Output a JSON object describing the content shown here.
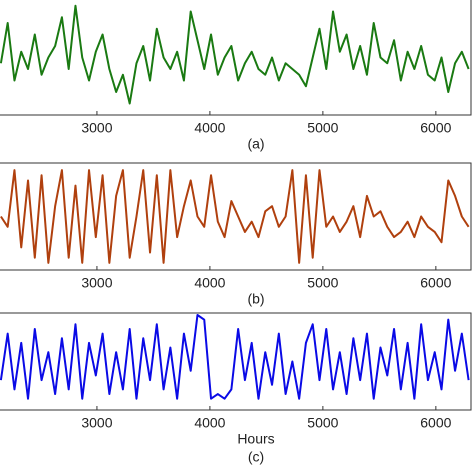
{
  "chart_data": [
    {
      "type": "line",
      "title": "(a)",
      "x": [
        2150,
        2210,
        2270,
        2330,
        2390,
        2450,
        2510,
        2570,
        2630,
        2690,
        2750,
        2810,
        2870,
        2930,
        2990,
        3050,
        3110,
        3170,
        3230,
        3290,
        3350,
        3410,
        3470,
        3530,
        3590,
        3650,
        3710,
        3770,
        3830,
        3890,
        3950,
        4010,
        4070,
        4130,
        4190,
        4250,
        4310,
        4370,
        4430,
        4490,
        4550,
        4610,
        4670,
        4730,
        4790,
        4850,
        4910,
        4970,
        5030,
        5090,
        5150,
        5210,
        5270,
        5330,
        5390,
        5450,
        5510,
        5570,
        5630,
        5690,
        5750,
        5810,
        5870,
        5930,
        5990,
        6050,
        6110,
        6170,
        6230,
        6290
      ],
      "series": [
        {
          "color": "#1a7a12",
          "values": [
            0.45,
            0.8,
            0.3,
            0.55,
            0.4,
            0.7,
            0.35,
            0.5,
            0.6,
            0.85,
            0.4,
            0.95,
            0.5,
            0.3,
            0.55,
            0.7,
            0.4,
            0.2,
            0.35,
            0.1,
            0.45,
            0.6,
            0.3,
            0.75,
            0.5,
            0.4,
            0.55,
            0.3,
            0.9,
            0.65,
            0.4,
            0.7,
            0.35,
            0.5,
            0.6,
            0.3,
            0.45,
            0.55,
            0.4,
            0.35,
            0.5,
            0.3,
            0.45,
            0.4,
            0.35,
            0.25,
            0.5,
            0.75,
            0.4,
            0.9,
            0.55,
            0.7,
            0.4,
            0.6,
            0.35,
            0.8,
            0.5,
            0.45,
            0.65,
            0.3,
            0.55,
            0.4,
            0.6,
            0.35,
            0.3,
            0.5,
            0.2,
            0.45,
            0.55,
            0.4
          ]
        }
      ],
      "xlim": [
        2142,
        6320
      ],
      "xticks": [
        3000,
        4000,
        5000,
        6000
      ],
      "ylim": [
        0,
        1
      ]
    },
    {
      "type": "line",
      "title": "(b)",
      "x": [
        2150,
        2210,
        2270,
        2330,
        2390,
        2450,
        2510,
        2570,
        2630,
        2690,
        2750,
        2810,
        2870,
        2930,
        2990,
        3050,
        3110,
        3170,
        3230,
        3290,
        3350,
        3410,
        3470,
        3530,
        3590,
        3650,
        3710,
        3770,
        3830,
        3890,
        3950,
        4010,
        4070,
        4130,
        4190,
        4250,
        4310,
        4370,
        4430,
        4490,
        4550,
        4610,
        4670,
        4730,
        4790,
        4850,
        4910,
        4970,
        5030,
        5090,
        5150,
        5210,
        5270,
        5330,
        5390,
        5450,
        5510,
        5570,
        5630,
        5690,
        5750,
        5810,
        5870,
        5930,
        5990,
        6050,
        6110,
        6170,
        6230,
        6290
      ],
      "series": [
        {
          "color": "#b0400e",
          "values": [
            0.5,
            0.4,
            0.95,
            0.2,
            0.85,
            0.1,
            0.9,
            0.05,
            0.6,
            0.95,
            0.1,
            0.8,
            0.05,
            0.95,
            0.3,
            0.9,
            0.05,
            0.7,
            0.95,
            0.1,
            0.5,
            0.95,
            0.15,
            0.9,
            0.05,
            0.95,
            0.3,
            0.6,
            0.85,
            0.5,
            0.4,
            0.9,
            0.45,
            0.3,
            0.65,
            0.5,
            0.35,
            0.45,
            0.3,
            0.55,
            0.6,
            0.4,
            0.5,
            0.95,
            0.05,
            0.9,
            0.1,
            0.95,
            0.4,
            0.5,
            0.35,
            0.45,
            0.6,
            0.3,
            0.7,
            0.5,
            0.55,
            0.4,
            0.3,
            0.35,
            0.45,
            0.3,
            0.5,
            0.4,
            0.35,
            0.25,
            0.85,
            0.7,
            0.5,
            0.4
          ]
        }
      ],
      "xlim": [
        2142,
        6320
      ],
      "xticks": [
        3000,
        4000,
        5000,
        6000
      ],
      "ylim": [
        0,
        1
      ]
    },
    {
      "type": "line",
      "title": "(c)",
      "x_label": "Hours",
      "x": [
        2150,
        2210,
        2270,
        2330,
        2390,
        2450,
        2510,
        2570,
        2630,
        2690,
        2750,
        2810,
        2870,
        2930,
        2990,
        3050,
        3110,
        3170,
        3230,
        3290,
        3350,
        3410,
        3470,
        3530,
        3590,
        3650,
        3710,
        3770,
        3830,
        3890,
        3950,
        4010,
        4070,
        4130,
        4190,
        4250,
        4310,
        4370,
        4430,
        4490,
        4550,
        4610,
        4670,
        4730,
        4790,
        4850,
        4910,
        4970,
        5030,
        5090,
        5150,
        5210,
        5270,
        5330,
        5390,
        5450,
        5510,
        5570,
        5630,
        5690,
        5750,
        5810,
        5870,
        5930,
        5990,
        6050,
        6110,
        6170,
        6230,
        6290
      ],
      "series": [
        {
          "color": "#0a0ae6",
          "values": [
            0.3,
            0.8,
            0.2,
            0.7,
            0.1,
            0.85,
            0.3,
            0.6,
            0.15,
            0.75,
            0.2,
            0.9,
            0.1,
            0.7,
            0.35,
            0.8,
            0.15,
            0.6,
            0.2,
            0.85,
            0.1,
            0.75,
            0.3,
            0.9,
            0.2,
            0.65,
            0.1,
            0.8,
            0.4,
            1.0,
            0.95,
            0.1,
            0.15,
            0.1,
            0.2,
            0.85,
            0.3,
            0.7,
            0.1,
            0.6,
            0.25,
            0.8,
            0.15,
            0.5,
            0.1,
            0.7,
            0.9,
            0.3,
            0.85,
            0.2,
            0.6,
            0.15,
            0.75,
            0.3,
            0.8,
            0.1,
            0.65,
            0.35,
            0.85,
            0.2,
            0.7,
            0.1,
            0.9,
            0.3,
            0.6,
            0.2,
            0.95,
            0.4,
            0.8,
            0.3
          ]
        }
      ],
      "xlim": [
        2142,
        6320
      ],
      "xticks": [
        3000,
        4000,
        5000,
        6000
      ],
      "ylim": [
        0,
        1
      ]
    }
  ]
}
